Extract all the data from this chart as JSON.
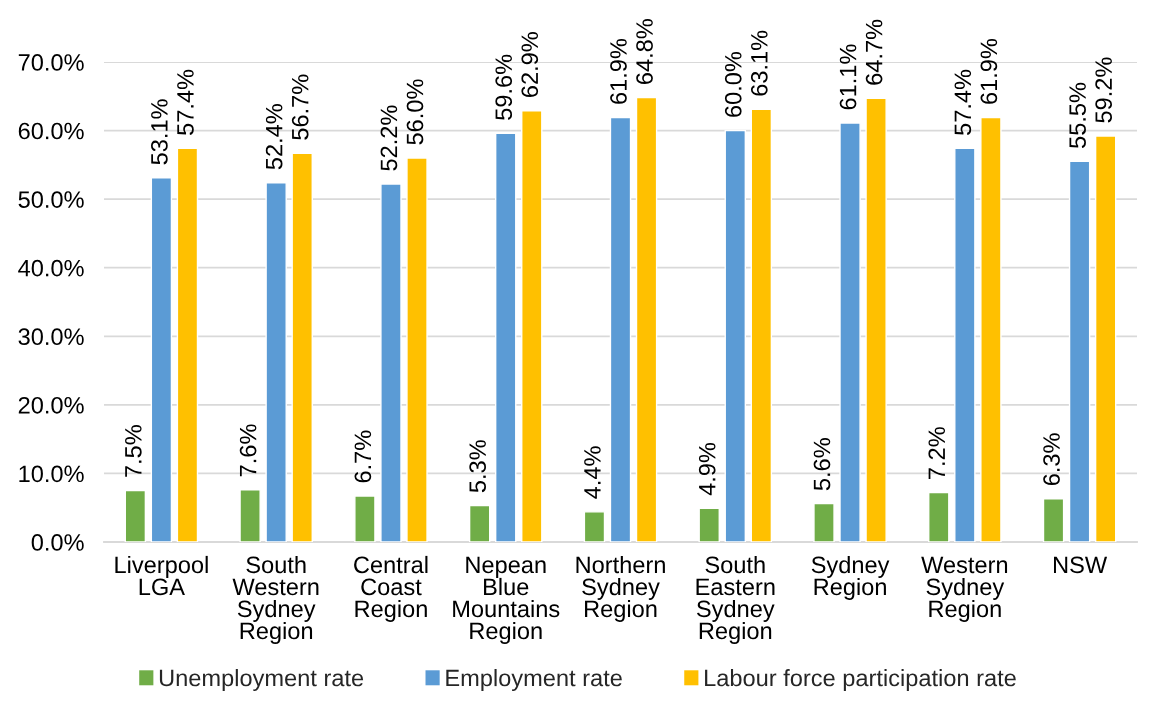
{
  "chart_data": {
    "type": "bar",
    "categories": [
      "Liverpool\nLGA",
      "South\nWestern\nSydney\nRegion",
      "Central\nCoast\nRegion",
      "Nepean\nBlue\nMountains\nRegion",
      "Northern\nSydney\nRegion",
      "South\nEastern\nSydney\nRegion",
      "Sydney\nRegion",
      "Western\nSydney\nRegion",
      "NSW"
    ],
    "series": [
      {
        "name": "Unemployment rate",
        "color": "#70ad47",
        "values": [
          7.5,
          7.6,
          6.7,
          5.3,
          4.4,
          4.9,
          5.6,
          7.2,
          6.3
        ],
        "value_labels": [
          "7.5%",
          "7.6%",
          "6.7%",
          "5.3%",
          "4.4%",
          "4.9%",
          "5.6%",
          "7.2%",
          "6.3%"
        ]
      },
      {
        "name": "Employment rate",
        "color": "#5b9bd5",
        "values": [
          53.1,
          52.4,
          52.2,
          59.6,
          61.9,
          60.0,
          61.1,
          57.4,
          55.5
        ],
        "value_labels": [
          "53.1%",
          "52.4%",
          "52.2%",
          "59.6%",
          "61.9%",
          "60.0%",
          "61.1%",
          "57.4%",
          "55.5%"
        ]
      },
      {
        "name": "Labour force participation rate",
        "color": "#ffc000",
        "values": [
          57.4,
          56.7,
          56.0,
          62.9,
          64.8,
          63.1,
          64.7,
          61.9,
          59.2
        ],
        "value_labels": [
          "57.4%",
          "56.7%",
          "56.0%",
          "62.9%",
          "64.8%",
          "63.1%",
          "64.7%",
          "61.9%",
          "59.2%"
        ]
      }
    ],
    "ylim": [
      0,
      70
    ],
    "yticks": [
      {
        "value": 0,
        "label": "0.0%"
      },
      {
        "value": 10,
        "label": "10.0%"
      },
      {
        "value": 20,
        "label": "20.0%"
      },
      {
        "value": 30,
        "label": "30.0%"
      },
      {
        "value": 40,
        "label": "40.0%"
      },
      {
        "value": 50,
        "label": "50.0%"
      },
      {
        "value": 60,
        "label": "60.0%"
      },
      {
        "value": 70,
        "label": "70.0%"
      }
    ],
    "grid": "y",
    "legend": "bottom"
  }
}
